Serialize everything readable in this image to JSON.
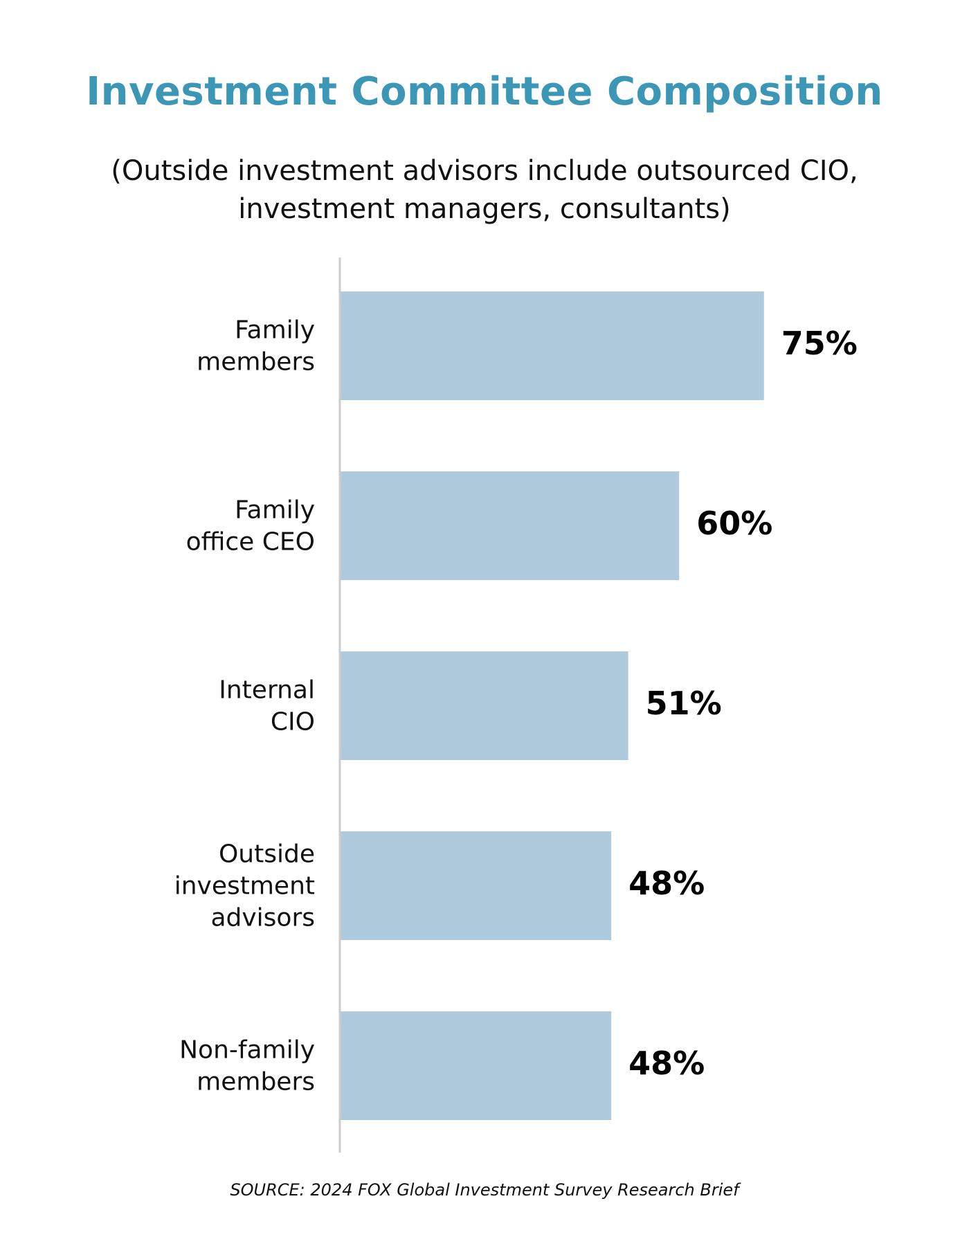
{
  "chart_data": {
    "type": "bar",
    "orientation": "horizontal",
    "title": "Investment Committee Composition",
    "subtitle": "(Outside investment advisors include outsourced CIO, investment managers, consultants)",
    "categories": [
      [
        "Family",
        "members"
      ],
      [
        "Family",
        "office CEO"
      ],
      [
        "Internal",
        "CIO"
      ],
      [
        "Outside",
        "investment",
        "advisors"
      ],
      [
        "Non-family",
        "members"
      ]
    ],
    "values": [
      75,
      60,
      51,
      48,
      48
    ],
    "value_labels": [
      "75%",
      "60%",
      "51%",
      "48%",
      "48%"
    ],
    "xlim": [
      0,
      100
    ],
    "grid": false,
    "legend": "none",
    "colors": {
      "bar": "#afcadc",
      "title": "#3b97b5",
      "axis": "#cccccc",
      "text": "#111111"
    },
    "source": "SOURCE:  2024 FOX Global Investment Survey Research Brief"
  }
}
